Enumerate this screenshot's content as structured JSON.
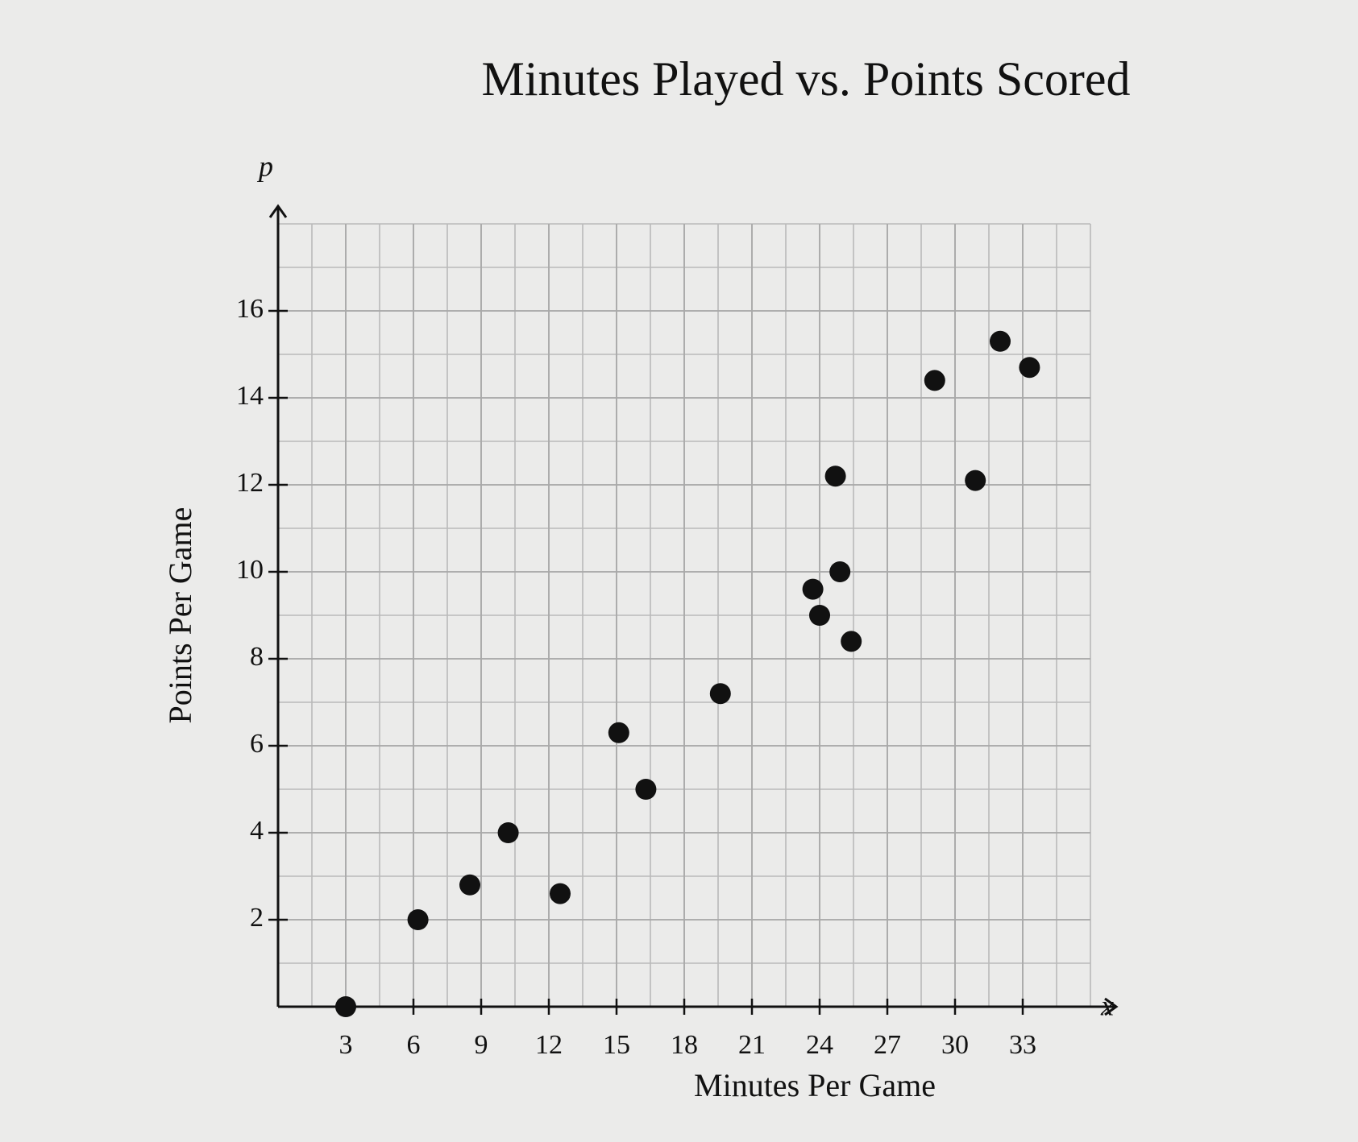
{
  "chart_data": {
    "type": "scatter",
    "title": "Minutes Played vs. Points Scored",
    "x_label": "Minutes Per Game",
    "y_label": "Points Per Game",
    "x_var": "x",
    "y_var": "p",
    "xlim": [
      0,
      36
    ],
    "ylim": [
      0,
      18
    ],
    "xticks": [
      3,
      6,
      9,
      12,
      15,
      18,
      21,
      24,
      27,
      30,
      33
    ],
    "yticks": [
      2,
      4,
      6,
      8,
      10,
      12,
      14,
      16
    ],
    "grid": true,
    "series": [
      {
        "color": "#111111",
        "x": [
          3,
          6.2,
          8.5,
          10.2,
          12.5,
          15.1,
          16.3,
          19.6,
          23.7,
          24,
          24.7,
          24.9,
          25.4,
          29.1,
          30.9,
          32,
          33.3
        ],
        "values": [
          0,
          2,
          2.8,
          4,
          2.6,
          6.3,
          5,
          7.2,
          9.6,
          9,
          12.2,
          10,
          8.4,
          14.4,
          12.1,
          15.3,
          14.7
        ]
      }
    ]
  }
}
